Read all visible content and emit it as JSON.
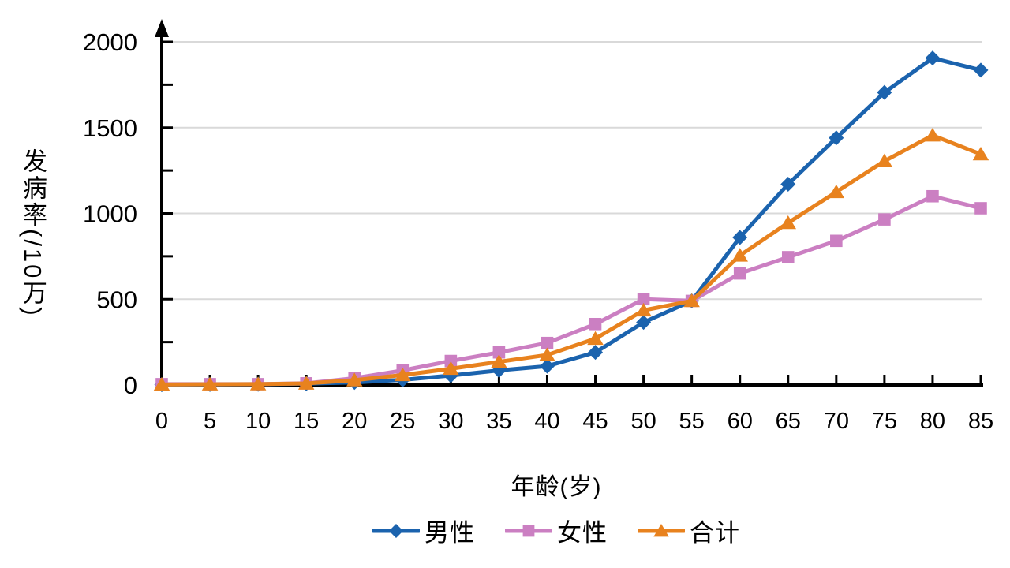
{
  "chart_data": {
    "type": "line",
    "title": "",
    "xlabel": "年龄(岁)",
    "ylabel": "发病率(/10万)",
    "x": [
      0,
      5,
      10,
      15,
      20,
      25,
      30,
      35,
      40,
      45,
      50,
      55,
      60,
      65,
      70,
      75,
      80,
      85
    ],
    "x_tick_labels": [
      "0",
      "5",
      "10",
      "15",
      "20",
      "25",
      "30",
      "35",
      "40",
      "45",
      "50",
      "55",
      "60",
      "65",
      "70",
      "75",
      "80",
      "85"
    ],
    "ylim": [
      0,
      2000
    ],
    "y_tick_labels": [
      0,
      500,
      1000,
      1500,
      2000
    ],
    "y_gridlines": [
      500,
      1000,
      1500,
      2000
    ],
    "y_minor_tick_step": 250,
    "grid": true,
    "legend_position": "bottom",
    "series": [
      {
        "id": "male",
        "name": "男性",
        "marker": "diamond",
        "color": "#1B63AE",
        "values": [
          2,
          3,
          4,
          8,
          15,
          30,
          55,
          85,
          110,
          190,
          365,
          490,
          860,
          1170,
          1440,
          1705,
          1905,
          1835
        ]
      },
      {
        "id": "female",
        "name": "女性",
        "marker": "square",
        "color": "#CB7FC2",
        "values": [
          5,
          5,
          5,
          10,
          40,
          85,
          140,
          190,
          245,
          355,
          500,
          490,
          650,
          745,
          840,
          965,
          1100,
          1030
        ]
      },
      {
        "id": "total",
        "name": "合计",
        "marker": "triangle",
        "color": "#E8821E",
        "values": [
          3,
          4,
          5,
          9,
          28,
          58,
          95,
          135,
          175,
          270,
          435,
          490,
          755,
          945,
          1125,
          1305,
          1455,
          1345
        ]
      }
    ]
  },
  "style": {
    "background": "#FFFFFF",
    "axis_color": "#000000",
    "gridline_color": "#D9D9D9",
    "text_color": "#000000"
  }
}
